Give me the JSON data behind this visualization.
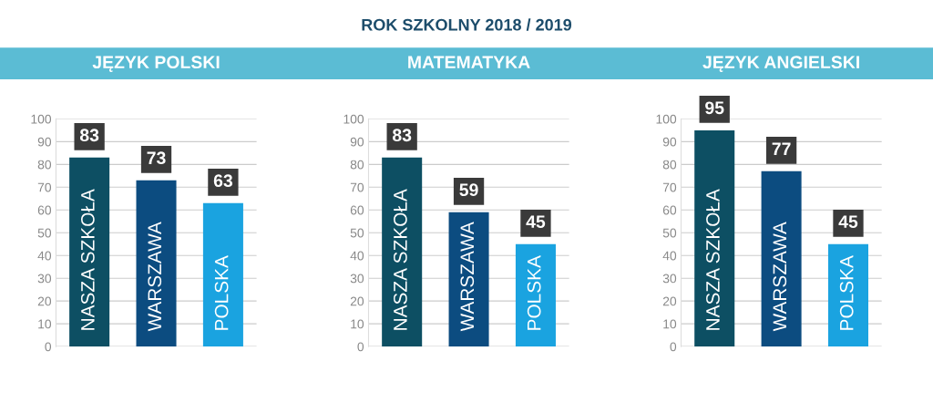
{
  "chart_data": [
    {
      "type": "bar",
      "title": "JĘZYK POLSKI",
      "categories": [
        "NASZA SZKOŁA",
        "WARSZAWA",
        "POLSKA"
      ],
      "values": [
        83,
        73,
        63
      ],
      "colors": [
        "#0d4f63",
        "#0c4c80",
        "#1aa3e0"
      ],
      "ylim": [
        0,
        100
      ],
      "yticks": [
        0,
        10,
        20,
        30,
        40,
        50,
        60,
        70,
        80,
        90,
        100
      ],
      "grid": "y",
      "data_labels": true
    },
    {
      "type": "bar",
      "title": "MATEMATYKA",
      "annotations": [
        "ROK SZKOLNY 2018 / 2019"
      ],
      "categories": [
        "NASZA SZKOŁA",
        "WARSZAWA",
        "POLSKA"
      ],
      "values": [
        83,
        59,
        45
      ],
      "colors": [
        "#0d4f63",
        "#0c4c80",
        "#1aa3e0"
      ],
      "ylim": [
        0,
        100
      ],
      "yticks": [
        0,
        10,
        20,
        30,
        40,
        50,
        60,
        70,
        80,
        90,
        100
      ],
      "grid": "y",
      "data_labels": true
    },
    {
      "type": "bar",
      "title": "JĘZYK ANGIELSKI",
      "categories": [
        "NASZA SZKOŁA",
        "WARSZAWA",
        "POLSKA"
      ],
      "values": [
        95,
        77,
        45
      ],
      "colors": [
        "#0d4f63",
        "#0c4c80",
        "#1aa3e0"
      ],
      "ylim": [
        0,
        100
      ],
      "yticks": [
        0,
        10,
        20,
        30,
        40,
        50,
        60,
        70,
        80,
        90,
        100
      ],
      "grid": "y",
      "data_labels": true
    }
  ]
}
